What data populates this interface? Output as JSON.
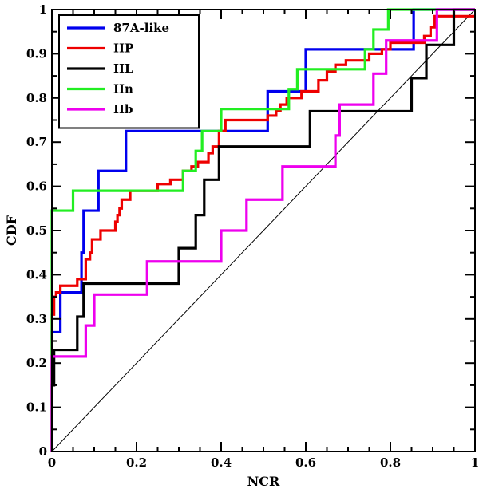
{
  "chart_data": {
    "type": "line",
    "title": "",
    "xlabel": "NCR",
    "ylabel": "CDF",
    "xlim": [
      0,
      1
    ],
    "ylim": [
      0,
      1
    ],
    "x_ticks": [
      0,
      0.2,
      0.4,
      0.6,
      0.8,
      1
    ],
    "x_tick_labels": [
      "0",
      "0.2",
      "0.4",
      "0.6",
      "0.8",
      "1"
    ],
    "y_ticks": [
      0,
      0.1,
      0.2,
      0.3,
      0.4,
      0.5,
      0.6,
      0.7,
      0.8,
      0.9,
      1
    ],
    "y_tick_labels": [
      "0",
      "0.1",
      "0.2",
      "0.3",
      "0.4",
      "0.5",
      "0.6",
      "0.7",
      "0.8",
      "0.9",
      "1"
    ],
    "grid": false,
    "legend_position": "top-left",
    "reference_line": {
      "x": [
        0,
        1
      ],
      "y": [
        0,
        1
      ],
      "color": "#000000"
    },
    "series": [
      {
        "name": "87A-like",
        "color": "#0000ee",
        "steps": [
          [
            0,
            0.27
          ],
          [
            0.02,
            0.36
          ],
          [
            0.07,
            0.45
          ],
          [
            0.075,
            0.545
          ],
          [
            0.11,
            0.635
          ],
          [
            0.175,
            0.725
          ],
          [
            0.51,
            0.815
          ],
          [
            0.6,
            0.91
          ],
          [
            0.855,
            1.0
          ]
        ]
      },
      {
        "name": "IIP",
        "color": "#ee0000",
        "steps": [
          [
            0,
            0.31
          ],
          [
            0.005,
            0.35
          ],
          [
            0.01,
            0.36
          ],
          [
            0.02,
            0.375
          ],
          [
            0.06,
            0.39
          ],
          [
            0.08,
            0.435
          ],
          [
            0.09,
            0.45
          ],
          [
            0.095,
            0.48
          ],
          [
            0.115,
            0.5
          ],
          [
            0.15,
            0.52
          ],
          [
            0.155,
            0.535
          ],
          [
            0.16,
            0.55
          ],
          [
            0.165,
            0.57
          ],
          [
            0.185,
            0.59
          ],
          [
            0.25,
            0.605
          ],
          [
            0.28,
            0.615
          ],
          [
            0.31,
            0.635
          ],
          [
            0.33,
            0.645
          ],
          [
            0.345,
            0.655
          ],
          [
            0.37,
            0.675
          ],
          [
            0.38,
            0.69
          ],
          [
            0.395,
            0.725
          ],
          [
            0.41,
            0.75
          ],
          [
            0.51,
            0.76
          ],
          [
            0.53,
            0.77
          ],
          [
            0.54,
            0.785
          ],
          [
            0.555,
            0.8
          ],
          [
            0.59,
            0.815
          ],
          [
            0.63,
            0.84
          ],
          [
            0.65,
            0.86
          ],
          [
            0.67,
            0.875
          ],
          [
            0.695,
            0.885
          ],
          [
            0.75,
            0.9
          ],
          [
            0.78,
            0.91
          ],
          [
            0.8,
            0.925
          ],
          [
            0.88,
            0.94
          ],
          [
            0.895,
            0.96
          ],
          [
            0.905,
            0.985
          ]
        ]
      },
      {
        "name": "IIL",
        "color": "#000000",
        "steps": [
          [
            0,
            0.15
          ],
          [
            0.005,
            0.23
          ],
          [
            0.06,
            0.305
          ],
          [
            0.075,
            0.38
          ],
          [
            0.3,
            0.46
          ],
          [
            0.34,
            0.535
          ],
          [
            0.36,
            0.615
          ],
          [
            0.395,
            0.69
          ],
          [
            0.61,
            0.77
          ],
          [
            0.85,
            0.845
          ],
          [
            0.885,
            0.92
          ],
          [
            0.95,
            1.0
          ]
        ]
      },
      {
        "name": "IIn",
        "color": "#22ee22",
        "steps": [
          [
            0,
            0.545
          ],
          [
            0.05,
            0.59
          ],
          [
            0.31,
            0.635
          ],
          [
            0.34,
            0.68
          ],
          [
            0.355,
            0.725
          ],
          [
            0.4,
            0.775
          ],
          [
            0.56,
            0.82
          ],
          [
            0.58,
            0.865
          ],
          [
            0.74,
            0.91
          ],
          [
            0.76,
            0.955
          ],
          [
            0.795,
            1.0
          ]
        ]
      },
      {
        "name": "IIb",
        "color": "#ee00ee",
        "steps": [
          [
            0,
            0.215
          ],
          [
            0.08,
            0.285
          ],
          [
            0.1,
            0.355
          ],
          [
            0.225,
            0.43
          ],
          [
            0.4,
            0.5
          ],
          [
            0.46,
            0.57
          ],
          [
            0.545,
            0.645
          ],
          [
            0.67,
            0.715
          ],
          [
            0.68,
            0.785
          ],
          [
            0.76,
            0.855
          ],
          [
            0.79,
            0.93
          ],
          [
            0.91,
            1.0
          ]
        ]
      }
    ]
  }
}
